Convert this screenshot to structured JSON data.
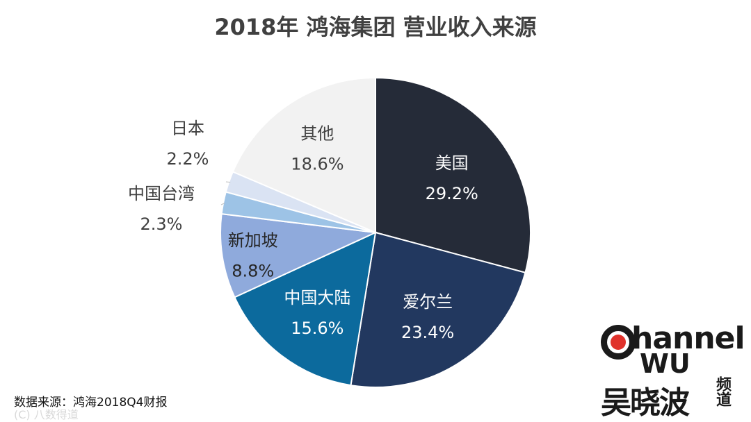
{
  "chart_data": {
    "type": "pie",
    "title": "2018年 鸿海集团 营业收入来源",
    "slices": [
      {
        "label": "美国",
        "value": 29.2,
        "display": "29.2%",
        "color": "#252b38",
        "text_color": "#ffffff"
      },
      {
        "label": "爱尔兰",
        "value": 23.4,
        "display": "23.4%",
        "color": "#22385f",
        "text_color": "#ffffff"
      },
      {
        "label": "中国大陆",
        "value": 15.6,
        "display": "15.6%",
        "color": "#0c6a9d",
        "text_color": "#ffffff"
      },
      {
        "label": "新加坡",
        "value": 8.8,
        "display": "8.8%",
        "color": "#8faadc",
        "text_color": "#262626"
      },
      {
        "label": "中国台湾",
        "value": 2.3,
        "display": "2.3%",
        "color": "#9dc3e6",
        "text_color": "#404040"
      },
      {
        "label": "日本",
        "value": 2.2,
        "display": "2.2%",
        "color": "#dae3f3",
        "text_color": "#404040"
      },
      {
        "label": "其他",
        "value": 18.6,
        "display": "18.6%",
        "color": "#f2f2f2",
        "text_color": "#404040"
      }
    ]
  },
  "source_note": "数据来源：鸿海2018Q4财报",
  "watermark": "(C) 八数得道",
  "logo": {
    "channel": "hannel",
    "wu": "WU",
    "name_cn": "吴晓波",
    "pindao": "频道",
    "accent_color": "#e0322b"
  }
}
